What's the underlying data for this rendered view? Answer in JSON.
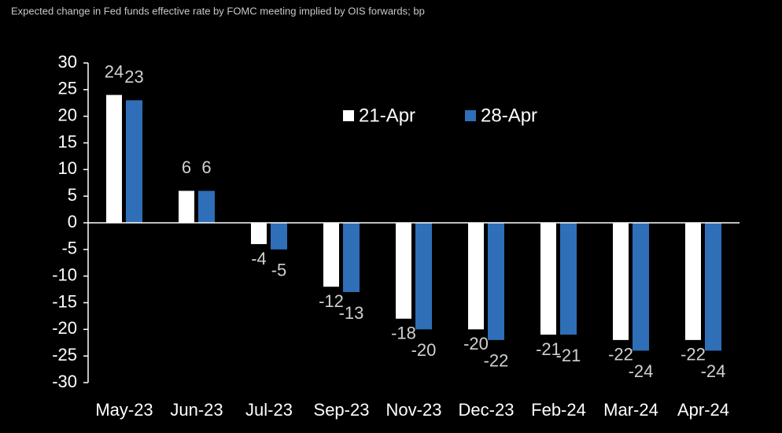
{
  "chart_data": {
    "type": "bar",
    "title": "Expected change in Fed funds effective rate by FOMC meeting implied by OIS forwards; bp",
    "categories": [
      "May-23",
      "Jun-23",
      "Jul-23",
      "Sep-23",
      "Nov-23",
      "Dec-23",
      "Feb-24",
      "Mar-24",
      "Apr-24"
    ],
    "series": [
      {
        "name": "21-Apr",
        "color": "#ffffff",
        "values": [
          24,
          6,
          -4,
          -12,
          -18,
          -20,
          -21,
          -22,
          -22
        ]
      },
      {
        "name": "28-Apr",
        "color": "#2e6fb7",
        "values": [
          23,
          6,
          -5,
          -13,
          -20,
          -22,
          -21,
          -24,
          -24
        ]
      }
    ],
    "ylim": [
      -30,
      30
    ],
    "yticks": [
      -30,
      -25,
      -20,
      -15,
      -10,
      -5,
      0,
      5,
      10,
      15,
      20,
      25,
      30
    ],
    "legend": "top"
  }
}
